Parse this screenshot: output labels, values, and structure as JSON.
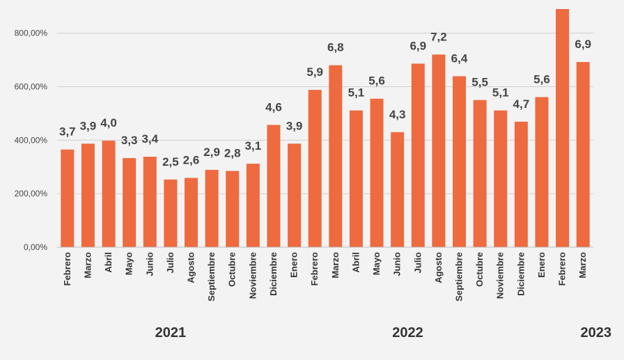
{
  "chart_data": {
    "type": "bar",
    "categories": [
      "Febrero",
      "Marzo",
      "Abril",
      "Mayo",
      "Junio",
      "Julio",
      "Agosto",
      "Septiembre",
      "Octubre",
      "Noviembre",
      "Diciembre",
      "Enero",
      "Febrero",
      "Marzo",
      "Abril",
      "Mayo",
      "Junio",
      "Julio",
      "Agosto",
      "Septiembre",
      "Octubre",
      "Noviembre",
      "Diciembre",
      "Enero",
      "Febrero",
      "Marzo"
    ],
    "values": [
      365,
      387,
      398,
      333,
      338,
      253,
      259,
      289,
      285,
      312,
      457,
      387,
      588,
      680,
      511,
      555,
      430,
      686,
      720,
      639,
      550,
      511,
      469,
      561,
      890,
      692
    ],
    "data_labels": [
      "3,7",
      "3,9",
      "4,0",
      "3,3",
      "3,4",
      "2,5",
      "2,6",
      "2,9",
      "2,8",
      "3,1",
      "4,6",
      "3,9",
      "5,9",
      "6,8",
      "5,1",
      "5,6",
      "4,3",
      "6,9",
      "7,2",
      "6,4",
      "5,5",
      "5,1",
      "4,7",
      "5,6",
      "",
      "6,9"
    ],
    "yticks": [
      0,
      200,
      400,
      600,
      800
    ],
    "ytick_labels": [
      "0,00%",
      "200,00%",
      "400,00%",
      "600,00%",
      "800,00%"
    ],
    "ylim": [
      0,
      890
    ],
    "grid": true,
    "bar_color": "#ee6a3f",
    "year_groups": [
      {
        "label": "2021",
        "start": 0,
        "end": 10
      },
      {
        "label": "2022",
        "start": 11,
        "end": 22
      },
      {
        "label": "2023",
        "start": 23,
        "end": 25
      }
    ]
  }
}
